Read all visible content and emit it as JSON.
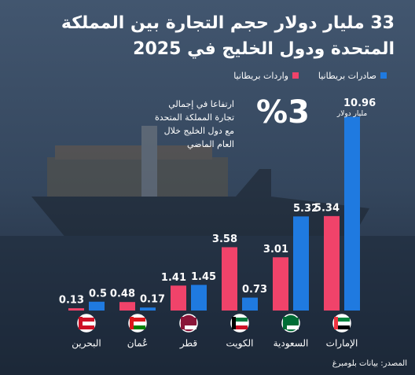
{
  "chart_data": {
    "type": "bar",
    "title_lines": [
      "33 مليار دولار حجم التجارة بين المملكة",
      "المتحدة ودول الخليج في 2025"
    ],
    "categories": [
      "الإمارات",
      "السعودية",
      "الكويت",
      "قطر",
      "عُمان",
      "البحرين"
    ],
    "series": [
      {
        "name": "صادرات بريطانيا",
        "color": "#1f7ae0",
        "values": [
          10.96,
          5.32,
          0.73,
          1.45,
          0.17,
          0.5
        ]
      },
      {
        "name": "واردات بريطانيا",
        "color": "#f0436a",
        "values": [
          5.34,
          3.01,
          3.58,
          1.41,
          0.48,
          0.13
        ]
      }
    ],
    "ylim": [
      0,
      12
    ],
    "unit_note": "مليار دولار",
    "highlight": "%3",
    "highlight_lines": [
      "ارتفاعا في إجمالي",
      "تجارة المملكة المتحدة",
      "مع دول الخليج خلال",
      "العام الماضي"
    ],
    "source": "المصدر: بيانات بلومبرغ"
  }
}
